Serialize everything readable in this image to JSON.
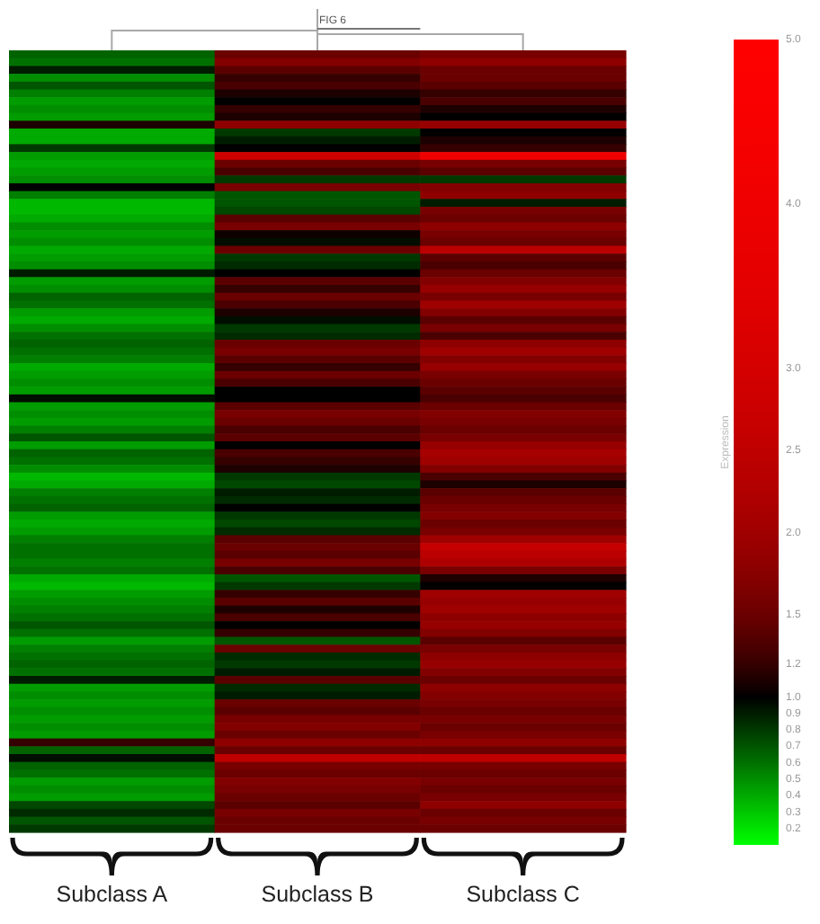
{
  "chart_data": {
    "type": "heatmap",
    "title": "FIG 6",
    "clabel": "Expression",
    "categories": [
      "Subclass A",
      "Subclass B",
      "Subclass C"
    ],
    "y_categories": [
      null,
      null,
      null,
      null,
      null,
      null,
      null,
      null,
      null,
      null,
      null,
      null,
      null,
      null,
      null,
      null,
      null,
      null,
      null,
      null,
      null,
      null,
      null,
      null,
      null,
      null,
      null,
      null,
      null,
      null,
      null,
      null,
      null,
      null,
      null,
      null,
      null,
      null,
      null,
      null,
      null,
      null,
      null,
      null,
      null,
      null,
      null,
      null,
      null,
      null,
      null,
      null,
      null,
      null,
      null,
      null,
      null,
      null,
      null,
      null,
      null,
      null,
      null,
      null,
      null,
      null,
      null,
      null,
      null,
      null,
      null,
      null,
      null,
      null,
      null,
      null,
      null,
      null,
      null,
      null,
      null,
      null,
      null,
      null,
      null,
      null,
      null,
      null,
      null,
      null,
      null,
      null,
      null,
      null,
      null,
      null,
      null,
      null,
      null,
      null
    ],
    "cells": [
      [
        0.65,
        1.5,
        1.6
      ],
      [
        0.6,
        1.7,
        1.8
      ],
      [
        0.9,
        1.4,
        1.5
      ],
      [
        0.5,
        1.2,
        1.5
      ],
      [
        0.7,
        1.3,
        1.4
      ],
      [
        0.55,
        1.1,
        1.2
      ],
      [
        0.45,
        1.0,
        1.3
      ],
      [
        0.5,
        1.2,
        1.1
      ],
      [
        0.45,
        1.1,
        1.0
      ],
      [
        1.1,
        1.8,
        1.9
      ],
      [
        0.4,
        0.8,
        1.0
      ],
      [
        0.4,
        0.9,
        1.1
      ],
      [
        0.8,
        1.0,
        1.2
      ],
      [
        0.45,
        2.8,
        4.0
      ],
      [
        0.4,
        1.5,
        1.6
      ],
      [
        0.45,
        1.3,
        1.4
      ],
      [
        0.5,
        0.8,
        0.8
      ],
      [
        1.0,
        1.6,
        1.7
      ],
      [
        0.55,
        0.7,
        1.8
      ],
      [
        0.35,
        0.7,
        0.9
      ],
      [
        0.35,
        0.75,
        1.6
      ],
      [
        0.4,
        1.4,
        1.5
      ],
      [
        0.5,
        1.6,
        1.8
      ],
      [
        0.45,
        1.05,
        1.6
      ],
      [
        0.5,
        0.95,
        1.5
      ],
      [
        0.4,
        1.5,
        2.4
      ],
      [
        0.45,
        0.8,
        1.4
      ],
      [
        0.5,
        0.85,
        1.3
      ],
      [
        0.9,
        1.0,
        1.5
      ],
      [
        0.45,
        1.4,
        1.7
      ],
      [
        0.5,
        1.2,
        1.9
      ],
      [
        0.65,
        1.5,
        1.6
      ],
      [
        0.6,
        1.3,
        2.0
      ],
      [
        0.45,
        1.1,
        1.7
      ],
      [
        0.4,
        0.95,
        1.4
      ],
      [
        0.5,
        0.8,
        1.6
      ],
      [
        0.6,
        0.85,
        1.3
      ],
      [
        0.65,
        1.5,
        1.8
      ],
      [
        0.6,
        1.6,
        2.0
      ],
      [
        0.55,
        1.4,
        1.7
      ],
      [
        0.4,
        1.2,
        1.9
      ],
      [
        0.45,
        1.5,
        1.6
      ],
      [
        0.5,
        1.3,
        1.5
      ],
      [
        0.45,
        1.0,
        1.4
      ],
      [
        0.95,
        1.0,
        1.3
      ],
      [
        0.45,
        1.4,
        1.5
      ],
      [
        0.5,
        1.6,
        1.7
      ],
      [
        0.45,
        1.5,
        1.6
      ],
      [
        0.55,
        1.3,
        1.5
      ],
      [
        0.7,
        1.4,
        1.6
      ],
      [
        0.45,
        1.0,
        1.9
      ],
      [
        0.65,
        1.3,
        2.1
      ],
      [
        0.6,
        1.2,
        2.0
      ],
      [
        0.5,
        1.1,
        1.7
      ],
      [
        0.35,
        0.8,
        1.3
      ],
      [
        0.4,
        0.75,
        1.1
      ],
      [
        0.55,
        0.9,
        1.4
      ],
      [
        0.6,
        0.85,
        1.5
      ],
      [
        0.65,
        1.0,
        1.6
      ],
      [
        0.45,
        0.8,
        1.7
      ],
      [
        0.4,
        0.75,
        1.5
      ],
      [
        0.45,
        0.85,
        1.6
      ],
      [
        0.55,
        1.4,
        2.0
      ],
      [
        0.6,
        1.5,
        2.6
      ],
      [
        0.6,
        1.4,
        2.4
      ],
      [
        0.55,
        1.6,
        2.2
      ],
      [
        0.6,
        1.3,
        1.6
      ],
      [
        0.4,
        0.7,
        1.1
      ],
      [
        0.35,
        0.8,
        1.0
      ],
      [
        0.45,
        1.2,
        2.0
      ],
      [
        0.5,
        1.4,
        1.9
      ],
      [
        0.55,
        1.1,
        2.0
      ],
      [
        0.6,
        1.3,
        1.8
      ],
      [
        0.7,
        1.0,
        1.9
      ],
      [
        0.6,
        1.2,
        1.7
      ],
      [
        0.45,
        0.7,
        1.4
      ],
      [
        0.55,
        1.5,
        1.6
      ],
      [
        0.6,
        0.85,
        1.8
      ],
      [
        0.65,
        0.8,
        1.9
      ],
      [
        0.6,
        0.9,
        1.7
      ],
      [
        0.9,
        1.4,
        1.5
      ],
      [
        0.45,
        0.85,
        1.8
      ],
      [
        0.5,
        0.9,
        1.7
      ],
      [
        0.45,
        1.5,
        1.6
      ],
      [
        0.5,
        1.4,
        1.5
      ],
      [
        0.45,
        1.6,
        1.6
      ],
      [
        0.5,
        1.7,
        1.5
      ],
      [
        0.45,
        1.5,
        1.6
      ],
      [
        1.2,
        1.8,
        1.8
      ],
      [
        0.65,
        1.5,
        1.5
      ],
      [
        0.95,
        2.5,
        2.5
      ],
      [
        0.65,
        1.6,
        1.6
      ],
      [
        0.6,
        1.5,
        1.5
      ],
      [
        0.45,
        1.7,
        1.6
      ],
      [
        0.5,
        1.6,
        1.5
      ],
      [
        0.45,
        1.5,
        1.6
      ],
      [
        0.75,
        1.4,
        1.8
      ],
      [
        0.85,
        1.6,
        1.5
      ],
      [
        0.7,
        1.5,
        1.6
      ],
      [
        0.8,
        1.5,
        1.5
      ]
    ],
    "clim": [
      0.1,
      5
    ],
    "cticks": [
      {
        "value": 5,
        "label": "5.0"
      },
      {
        "value": 4,
        "label": "4.0"
      },
      {
        "value": 3,
        "label": "3.0"
      },
      2.5,
      {
        "value": 2,
        "label": "2.0"
      },
      1.5,
      1.2,
      {
        "value": 1,
        "label": "1.0"
      },
      0.9,
      0.8,
      0.7,
      0.6,
      0.5,
      0.4,
      0.3,
      0.2
    ]
  }
}
